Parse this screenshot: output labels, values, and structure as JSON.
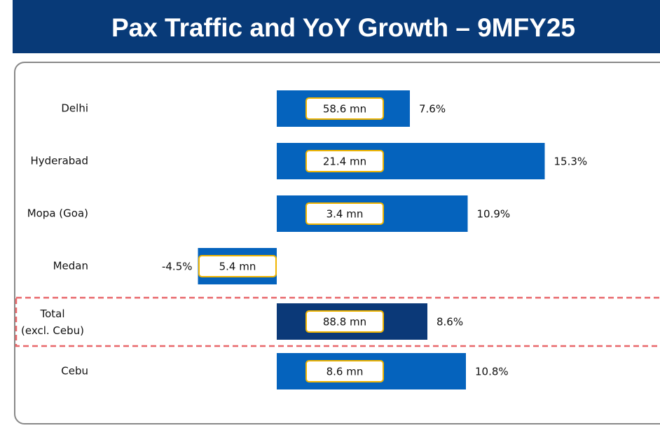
{
  "chart_data": {
    "type": "bar",
    "title": "Pax Traffic and YoY Growth – 9MFY25",
    "categories": [
      "Delhi",
      "Hyderabad",
      "Mopa (Goa)",
      "Medan",
      "Total\n(excl. Cebu)",
      "Cebu"
    ],
    "values": [
      7.6,
      15.3,
      10.9,
      -4.5,
      8.6,
      10.8
    ],
    "value_labels": [
      "7.6%",
      "15.3%",
      "10.9%",
      "-4.5%",
      "8.6%",
      "10.8%"
    ],
    "pax_values": [
      58.6,
      21.4,
      3.4,
      5.4,
      88.8,
      8.6
    ],
    "pax_labels": [
      "58.6 mn",
      "21.4 mn",
      "3.4 mn",
      "5.4 mn",
      "88.8 mn",
      "8.6 mn"
    ],
    "colors": [
      "#0563bd",
      "#0563bd",
      "#0563bd",
      "#0563bd",
      "#0b3978",
      "#0563bd"
    ]
  }
}
